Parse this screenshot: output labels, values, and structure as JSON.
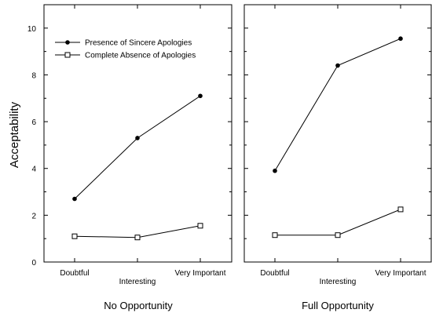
{
  "chart_data": {
    "type": "line",
    "ylabel": "Acceptability",
    "ylim": [
      0,
      11
    ],
    "yticks": [
      0,
      2,
      4,
      6,
      8,
      10
    ],
    "categories": [
      "Doubtful",
      "Interesting",
      "Very Important"
    ],
    "legend": {
      "placement": "top-left of left panel",
      "entries": [
        {
          "name": "Presence of Sincere Apologies",
          "marker": "filled-diamond"
        },
        {
          "name": "Complete Absence of Apologies",
          "marker": "open-square"
        }
      ]
    },
    "panels": [
      {
        "title": "No Opportunity",
        "series": [
          {
            "name": "Presence of Sincere Apologies",
            "values": [
              2.7,
              5.3,
              7.1
            ]
          },
          {
            "name": "Complete Absence of Apologies",
            "values": [
              1.1,
              1.05,
              1.55
            ]
          }
        ]
      },
      {
        "title": "Full Opportunity",
        "series": [
          {
            "name": "Presence of Sincere Apologies",
            "values": [
              3.9,
              8.4,
              9.55
            ]
          },
          {
            "name": "Complete Absence of Apologies",
            "values": [
              1.15,
              1.15,
              2.25
            ]
          }
        ]
      }
    ],
    "colors": {
      "line": "#000000",
      "frame": "#000000"
    }
  }
}
